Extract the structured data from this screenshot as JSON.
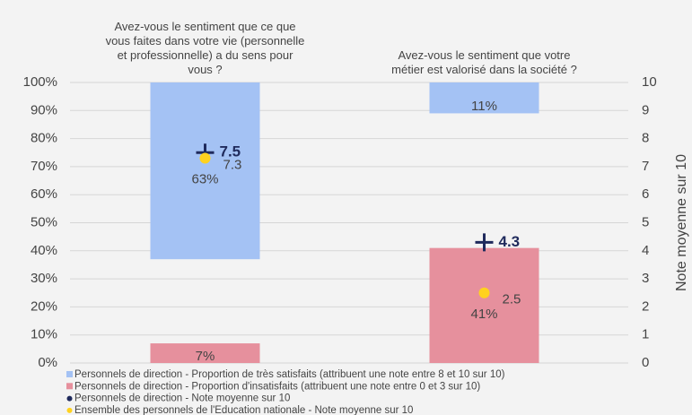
{
  "chart_data": {
    "type": "bar",
    "categories": [
      "Avez-vous le sentiment que ce que\nvous faites dans votre vie (personnelle\net professionnelle) a du sens pour\nvous ?",
      "Avez-vous le sentiment que votre\nmétier est valorisé dans la société ?"
    ],
    "series": [
      {
        "name": "Personnels de direction - Proportion de très satisfaits (attribuent une note entre 8 et 10 sur 10)",
        "type": "bar",
        "anchor": "top",
        "color": "#a4c2f4",
        "values": [
          63,
          11
        ],
        "value_labels": [
          "63%",
          "11%"
        ]
      },
      {
        "name": "Personnels de direction - Proportion d'insatisfaits (attribuent une note entre 0 et 3 sur 10)",
        "type": "bar",
        "anchor": "bottom",
        "color": "#e6909d",
        "values": [
          7,
          41
        ],
        "value_labels": [
          "7%",
          "41%"
        ]
      },
      {
        "name": "Personnels de direction - Note moyenne sur 10",
        "type": "scatter",
        "marker": "plus",
        "axis": "y2",
        "color": "#1f2a5c",
        "values": [
          7.5,
          4.3
        ]
      },
      {
        "name": "Ensemble des personnels de l'Education nationale - Note moyenne sur 10",
        "type": "scatter",
        "marker": "circle",
        "axis": "y2",
        "color": "#ffd21f",
        "values": [
          7.3,
          2.5
        ]
      }
    ],
    "ylim": [
      0,
      100
    ],
    "yticks": [
      {
        "value": 0,
        "label": "0%"
      },
      {
        "value": 10,
        "label": "10%"
      },
      {
        "value": 20,
        "label": "20%"
      },
      {
        "value": 30,
        "label": "30%"
      },
      {
        "value": 40,
        "label": "40%"
      },
      {
        "value": 50,
        "label": "50%"
      },
      {
        "value": 60,
        "label": "60%"
      },
      {
        "value": 70,
        "label": "70%"
      },
      {
        "value": 80,
        "label": "80%"
      },
      {
        "value": 90,
        "label": "90%"
      },
      {
        "value": 100,
        "label": "100%"
      }
    ],
    "y2lim": [
      0,
      10
    ],
    "y2ticks": [
      0,
      1,
      2,
      3,
      4,
      5,
      6,
      7,
      8,
      9,
      10
    ],
    "y2label": "Note moyenne sur 10",
    "grid": true,
    "legend": "bottom"
  }
}
